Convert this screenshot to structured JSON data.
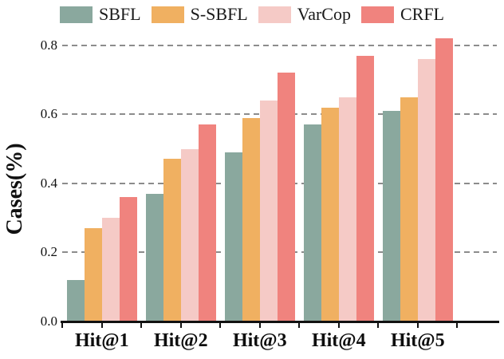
{
  "chart_data": {
    "type": "bar",
    "title": "",
    "xlabel": "",
    "ylabel": "Cases(%)",
    "categories": [
      "Hit@1",
      "Hit@2",
      "Hit@3",
      "Hit@4",
      "Hit@5"
    ],
    "series": [
      {
        "name": "SBFL",
        "color": "#8AA89E",
        "values": [
          0.12,
          0.37,
          0.49,
          0.57,
          0.61
        ]
      },
      {
        "name": "S-SBFL",
        "color": "#F0B061",
        "values": [
          0.27,
          0.47,
          0.59,
          0.62,
          0.65
        ]
      },
      {
        "name": "VarCop",
        "color": "#F5CAC6",
        "values": [
          0.3,
          0.5,
          0.64,
          0.65,
          0.76
        ]
      },
      {
        "name": "CRFL",
        "color": "#F0837E",
        "values": [
          0.36,
          0.57,
          0.72,
          0.77,
          0.82
        ]
      }
    ],
    "ylim": [
      0,
      0.84
    ],
    "yticks": [
      0.0,
      0.2,
      0.4,
      0.6,
      0.8
    ],
    "ytick_labels": [
      "0.0",
      "0.2",
      "0.4",
      "0.6",
      "0.8"
    ],
    "grid": "dashed-horizontal",
    "legend_position": "top-center"
  },
  "colors": {
    "background": "#ffffff",
    "grid": "#8c8c8c",
    "axis": "#111111",
    "text": "#1a1a1a"
  }
}
